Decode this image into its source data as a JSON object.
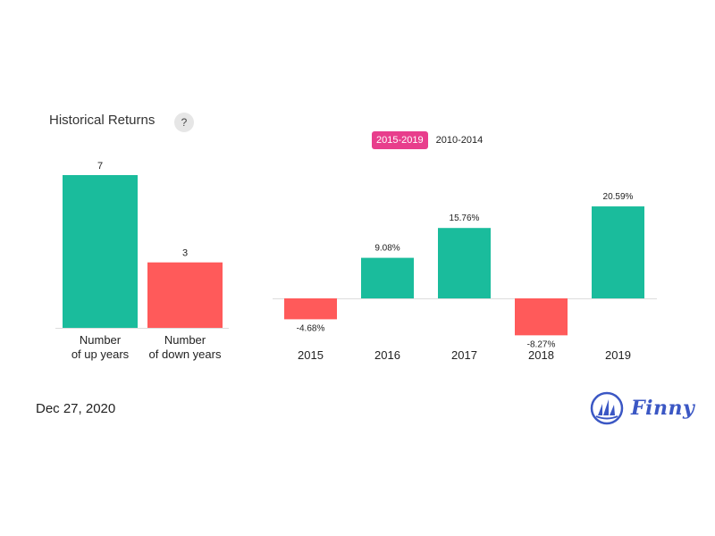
{
  "header": {
    "title": "Historical Returns",
    "help_label": "?"
  },
  "tabs": [
    {
      "label": "2015-2019",
      "active": true
    },
    {
      "label": "2010-2014",
      "active": false
    }
  ],
  "footer": {
    "date": "Dec 27, 2020",
    "brand": "Finny",
    "brand_icon": "sailboat-logo-icon"
  },
  "colors": {
    "up": "#1abc9c",
    "down": "#ff5a5a",
    "active_tab": "#e83e8c",
    "brand": "#3b57c4"
  },
  "chart_data": [
    {
      "type": "bar",
      "categories": [
        [
          "Number",
          "of up years"
        ],
        [
          "Number",
          "of down years"
        ]
      ],
      "values": [
        7,
        3
      ],
      "data_labels": [
        "7",
        "3"
      ],
      "colors": [
        "#1abc9c",
        "#ff5a5a"
      ],
      "ylim": [
        0,
        7
      ]
    },
    {
      "type": "bar",
      "categories": [
        "2015",
        "2016",
        "2017",
        "2018",
        "2019"
      ],
      "values": [
        -4.68,
        9.08,
        15.76,
        -8.27,
        20.59
      ],
      "data_labels": [
        "-4.68%",
        "9.08%",
        "15.76%",
        "-8.27%",
        "20.59%"
      ],
      "unit": "%",
      "ylim": [
        -8.27,
        20.59
      ]
    }
  ]
}
